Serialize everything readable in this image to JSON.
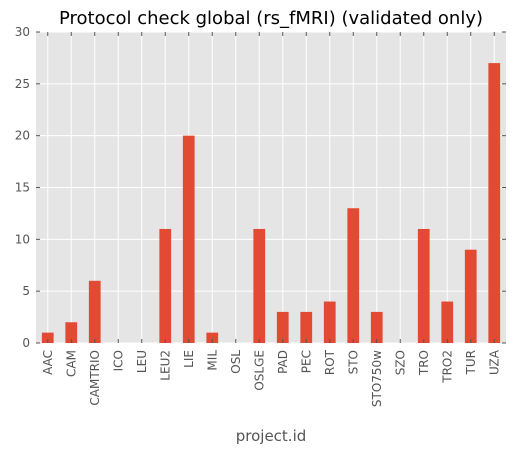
{
  "chart_data": {
    "type": "bar",
    "title": "Protocol check global (rs_fMRI) (validated only)",
    "xlabel": "project.id",
    "ylabel": "",
    "categories": [
      "AAC",
      "CAM",
      "CAMTRIO",
      "ICO",
      "LEU",
      "LEU2",
      "LIE",
      "MIL",
      "OSL",
      "OSLGE",
      "PAD",
      "PEC",
      "ROT",
      "STO",
      "STO750w",
      "SZO",
      "TRO",
      "TRO2",
      "TUR",
      "UZA"
    ],
    "values": [
      1,
      2,
      6,
      0,
      0,
      11,
      20,
      1,
      0,
      11,
      3,
      3,
      4,
      13,
      3,
      0,
      11,
      4,
      9,
      27
    ],
    "ylim": [
      0,
      30
    ],
    "yticks": [
      "0",
      "5",
      "10",
      "15",
      "20",
      "25",
      "30"
    ],
    "grid": true,
    "colors": {
      "bar": "#e24a33",
      "background": "#e5e5e5",
      "grid": "#ffffff",
      "tick_text": "#555555"
    }
  }
}
